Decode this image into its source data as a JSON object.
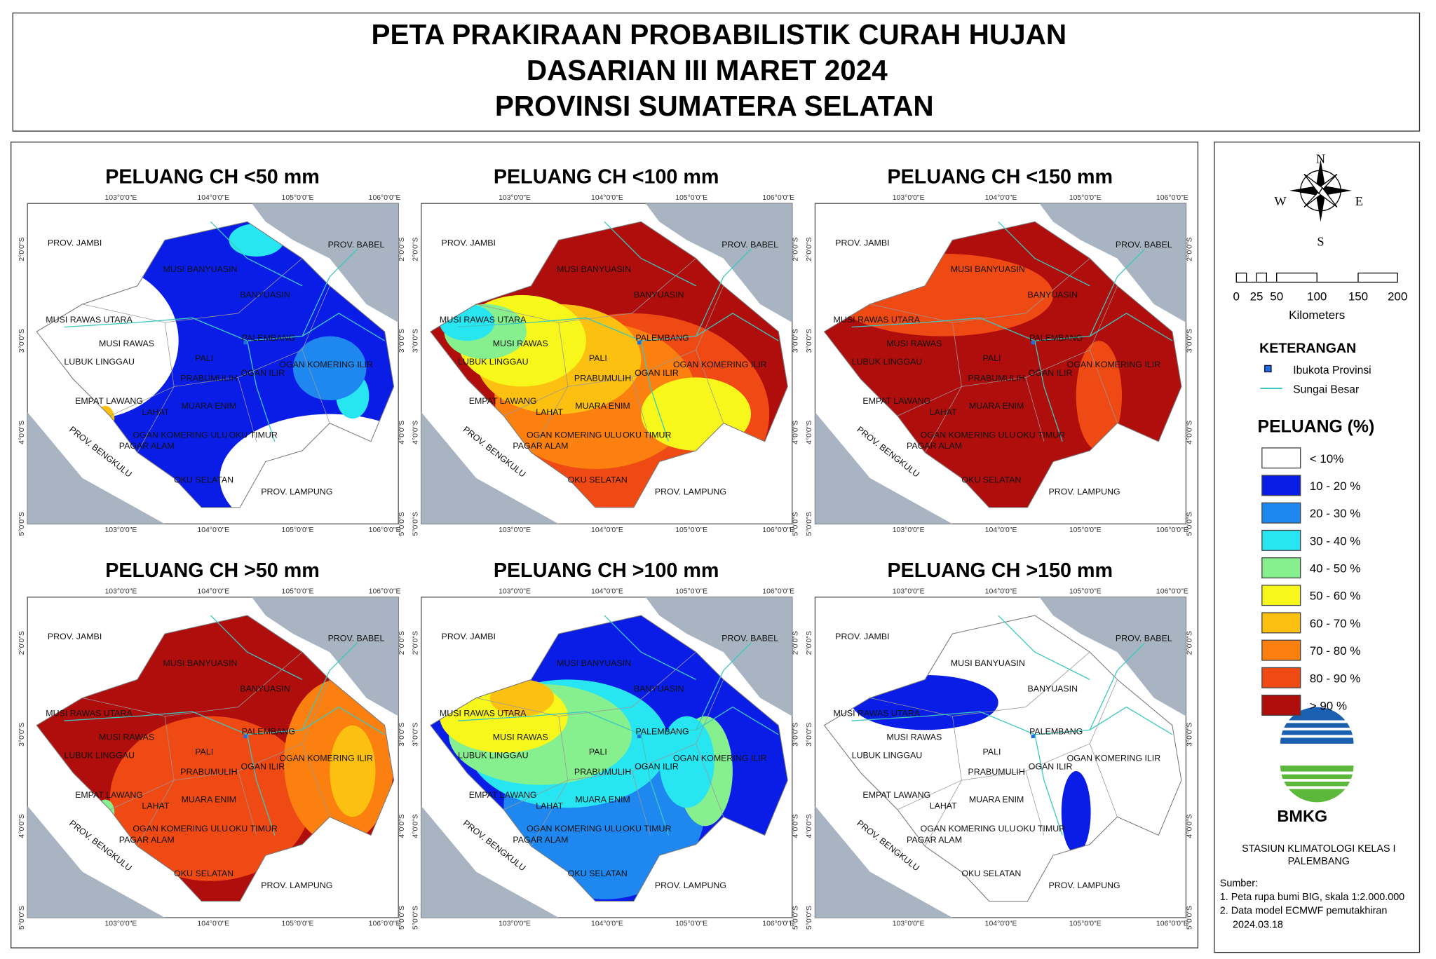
{
  "header": {
    "title_lines": [
      "PETA PRAKIRAAN PROBABILISTIK CURAH HUJAN",
      "DASARIAN III MARET 2024",
      "PROVINSI SUMATERA SELATAN"
    ]
  },
  "panels": [
    {
      "title": "PELUANG CH <50 mm"
    },
    {
      "title": "PELUANG CH <100 mm"
    },
    {
      "title": "PELUANG CH <150 mm"
    },
    {
      "title": "PELUANG CH >50 mm"
    },
    {
      "title": "PELUANG CH >100 mm"
    },
    {
      "title": "PELUANG CH >150 mm"
    }
  ],
  "map_labels": [
    "PROV. JAMBI",
    "PROV. BABEL",
    "MUSI BANYUASIN",
    "BANYUASIN",
    "MUSI RAWAS UTARA",
    "MUSI RAWAS",
    "PALI",
    "PALEMBANG",
    "LUBUK LINGGAU",
    "PRABUMULIH",
    "OGAN ILIR",
    "OGAN KOMERING ILIR",
    "EMPAT LAWANG",
    "MUARA ENIM",
    "LAHAT",
    "OGAN KOMERING ULU",
    "OKU TIMUR",
    "PAGAR ALAM",
    "PROV. BENGKULU",
    "OKU SELATAN",
    "PROV. LAMPUNG"
  ],
  "lon_labels": [
    "103°0'0\"E",
    "104°0'0\"E",
    "105°0'0\"E",
    "106°0'0\"E"
  ],
  "lat_labels": [
    "2°0'0\"S",
    "3°0'0\"S",
    "4°0'0\"S",
    "5°0'0\"S"
  ],
  "compass": [
    "N",
    "E",
    "S",
    "W"
  ],
  "scale_bar": {
    "ticks": [
      "0",
      "25",
      "50",
      "100",
      "150",
      "200"
    ],
    "unit": "Kilometers"
  },
  "legend": {
    "title": "KETERANGAN",
    "items": [
      "Ibukota Provinsi",
      "Sungai Besar"
    ],
    "peluang_title": "PELUANG (%)",
    "classes": [
      {
        "label": "< 10%",
        "color": "#ffffff"
      },
      {
        "label": "10 - 20 %",
        "color": "#0a1de6"
      },
      {
        "label": "20 - 30 %",
        "color": "#1e88f0"
      },
      {
        "label": "30 - 40 %",
        "color": "#27e6f2"
      },
      {
        "label": "40 - 50 %",
        "color": "#86f08e"
      },
      {
        "label": "50 - 60 %",
        "color": "#f7f71c"
      },
      {
        "label": "60 - 70 %",
        "color": "#fbc010"
      },
      {
        "label": "70 - 80 %",
        "color": "#fb8010"
      },
      {
        "label": "80 - 90 %",
        "color": "#f04a14"
      },
      {
        "label": "> 90 %",
        "color": "#b00d0d"
      }
    ]
  },
  "logo": "BMKG",
  "station": [
    "STASIUN KLIMATOLOGI KELAS I",
    "PALEMBANG"
  ],
  "sources": {
    "title": "Sumber:",
    "lines": [
      "1. Peta rupa bumi BIG, skala 1:2.000.000",
      "2. Data model ECMWF pemutakhiran",
      "2024.03.18"
    ]
  }
}
